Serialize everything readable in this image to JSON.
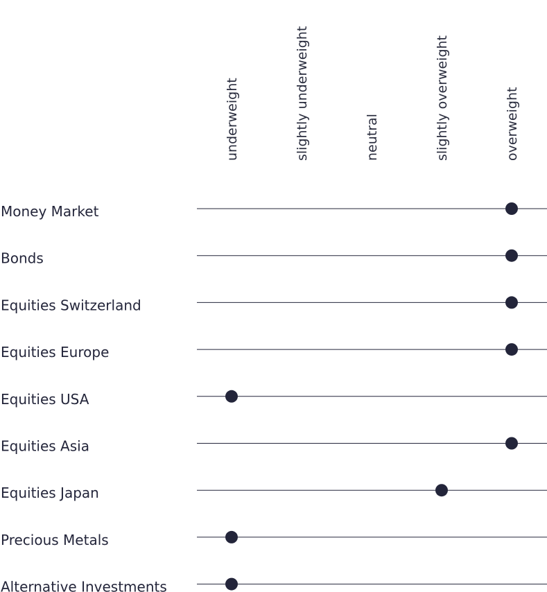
{
  "chart_data": {
    "type": "scatter",
    "title": "",
    "levels": [
      "underweight",
      "slightly underweight",
      "neutral",
      "slightly overweight",
      "overweight"
    ],
    "categories": [
      "Money Market",
      "Bonds",
      "Equities Switzerland",
      "Equities Europe",
      "Equities USA",
      "Equities Asia",
      "Equities Japan",
      "Precious Metals",
      "Alternative Investments"
    ],
    "values": [
      "overweight",
      "overweight",
      "overweight",
      "overweight",
      "underweight",
      "overweight",
      "slightly overweight",
      "underweight",
      "underweight"
    ],
    "grid": false,
    "legend": "none",
    "colors": {
      "marker": "#23253a",
      "line": "#23253a",
      "text": "#23253a"
    }
  }
}
